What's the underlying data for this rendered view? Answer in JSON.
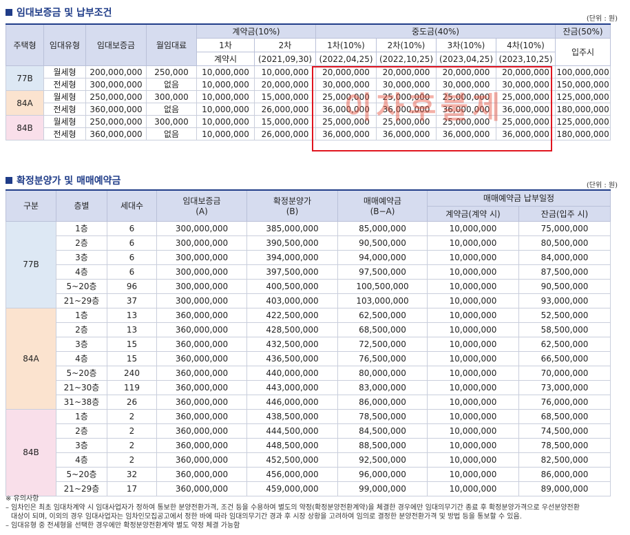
{
  "section1": {
    "title": "임대보증금 및 납부조건",
    "unit": "(단위 : 원)",
    "headers": {
      "unit_type": "주택형",
      "rent_type": "임대유형",
      "deposit": "임대보증금",
      "monthly_rent": "월임대료",
      "contract": "계약금(10%)",
      "middle": "중도금(40%)",
      "balance": "잔금(50%)",
      "c1": "1차",
      "c1_sub": "계약시",
      "c2": "2차",
      "c2_sub": "(2021,09,30)",
      "m1": "1차(10%)",
      "m1_sub": "(2022,04,25)",
      "m2": "2차(10%)",
      "m2_sub": "(2022,10,25)",
      "m3": "3차(10%)",
      "m3_sub": "(2023,04,25)",
      "m4": "4차(10%)",
      "m4_sub": "(2023,10,25)",
      "balance_sub": "입주시"
    },
    "rows": [
      {
        "type": "77B",
        "rent": "월세형",
        "deposit": "200,000,000",
        "monthly": "250,000",
        "c1": "10,000,000",
        "c2": "10,000,000",
        "m1": "20,000,000",
        "m2": "20,000,000",
        "m3": "20,000,000",
        "m4": "20,000,000",
        "bal": "100,000,000"
      },
      {
        "type": "77B",
        "rent": "전세형",
        "deposit": "300,000,000",
        "monthly": "없음",
        "c1": "10,000,000",
        "c2": "20,000,000",
        "m1": "30,000,000",
        "m2": "30,000,000",
        "m3": "30,000,000",
        "m4": "30,000,000",
        "bal": "150,000,000"
      },
      {
        "type": "84A",
        "rent": "월세형",
        "deposit": "250,000,000",
        "monthly": "300,000",
        "c1": "10,000,000",
        "c2": "15,000,000",
        "m1": "25,000,000",
        "m2": "25,000,000",
        "m3": "25,000,000",
        "m4": "25,000,000",
        "bal": "125,000,000"
      },
      {
        "type": "84A",
        "rent": "전세형",
        "deposit": "360,000,000",
        "monthly": "없음",
        "c1": "10,000,000",
        "c2": "26,000,000",
        "m1": "36,000,000",
        "m2": "36,000,000",
        "m3": "36,000,000",
        "m4": "36,000,000",
        "bal": "180,000,000"
      },
      {
        "type": "84B",
        "rent": "월세형",
        "deposit": "250,000,000",
        "monthly": "300,000",
        "c1": "10,000,000",
        "c2": "15,000,000",
        "m1": "25,000,000",
        "m2": "25,000,000",
        "m3": "25,000,000",
        "m4": "25,000,000",
        "bal": "125,000,000"
      },
      {
        "type": "84B",
        "rent": "전세형",
        "deposit": "360,000,000",
        "monthly": "없음",
        "c1": "10,000,000",
        "c2": "26,000,000",
        "m1": "36,000,000",
        "m2": "36,000,000",
        "m3": "36,000,000",
        "m4": "36,000,000",
        "bal": "180,000,000"
      }
    ],
    "watermark": "이자후불제"
  },
  "section2": {
    "title": "확정분양가 및 매매예약금",
    "unit": "(단위 : 원)",
    "headers": {
      "type": "구분",
      "floor": "층별",
      "units": "세대수",
      "deposit": "임대보증금",
      "deposit_sub": "(A)",
      "price": "확정분양가",
      "price_sub": "(B)",
      "reserve": "매매예약금",
      "reserve_sub": "(B−A)",
      "schedule": "매매예약금 납부일정",
      "contract": "계약금(계약 시)",
      "balance": "잔금(입주 시)"
    },
    "groups": [
      {
        "type": "77B",
        "rows": [
          [
            "1층",
            "6",
            "300,000,000",
            "385,000,000",
            "85,000,000",
            "10,000,000",
            "75,000,000"
          ],
          [
            "2층",
            "6",
            "300,000,000",
            "390,500,000",
            "90,500,000",
            "10,000,000",
            "80,500,000"
          ],
          [
            "3층",
            "6",
            "300,000,000",
            "394,000,000",
            "94,000,000",
            "10,000,000",
            "84,000,000"
          ],
          [
            "4층",
            "6",
            "300,000,000",
            "397,500,000",
            "97,500,000",
            "10,000,000",
            "87,500,000"
          ],
          [
            "5~20층",
            "96",
            "300,000,000",
            "400,500,000",
            "100,500,000",
            "10,000,000",
            "90,500,000"
          ],
          [
            "21~29층",
            "37",
            "300,000,000",
            "403,000,000",
            "103,000,000",
            "10,000,000",
            "93,000,000"
          ]
        ]
      },
      {
        "type": "84A",
        "rows": [
          [
            "1층",
            "13",
            "360,000,000",
            "422,500,000",
            "62,500,000",
            "10,000,000",
            "52,500,000"
          ],
          [
            "2층",
            "13",
            "360,000,000",
            "428,500,000",
            "68,500,000",
            "10,000,000",
            "58,500,000"
          ],
          [
            "3층",
            "15",
            "360,000,000",
            "432,500,000",
            "72,500,000",
            "10,000,000",
            "62,500,000"
          ],
          [
            "4층",
            "15",
            "360,000,000",
            "436,500,000",
            "76,500,000",
            "10,000,000",
            "66,500,000"
          ],
          [
            "5~20층",
            "240",
            "360,000,000",
            "440,000,000",
            "80,000,000",
            "10,000,000",
            "70,000,000"
          ],
          [
            "21~30층",
            "119",
            "360,000,000",
            "443,000,000",
            "83,000,000",
            "10,000,000",
            "73,000,000"
          ],
          [
            "31~38층",
            "26",
            "360,000,000",
            "446,000,000",
            "86,000,000",
            "10,000,000",
            "76,000,000"
          ]
        ]
      },
      {
        "type": "84B",
        "rows": [
          [
            "1층",
            "2",
            "360,000,000",
            "438,500,000",
            "78,500,000",
            "10,000,000",
            "68,500,000"
          ],
          [
            "2층",
            "2",
            "360,000,000",
            "444,500,000",
            "84,500,000",
            "10,000,000",
            "74,500,000"
          ],
          [
            "3층",
            "2",
            "360,000,000",
            "448,500,000",
            "88,500,000",
            "10,000,000",
            "78,500,000"
          ],
          [
            "4층",
            "2",
            "360,000,000",
            "452,500,000",
            "92,500,000",
            "10,000,000",
            "82,500,000"
          ],
          [
            "5~20층",
            "32",
            "360,000,000",
            "456,000,000",
            "96,000,000",
            "10,000,000",
            "86,000,000"
          ],
          [
            "21~29층",
            "17",
            "360,000,000",
            "459,000,000",
            "99,000,000",
            "10,000,000",
            "89,000,000"
          ]
        ]
      }
    ]
  },
  "notes": {
    "heading": "※ 유의사항",
    "line1": "– 임차인은 최초 임대차계약 시 임대사업자가 정하여 통보한 분양전환가격, 조건 등을 수용하여 별도의 약정(확정분양전환계약)을 체결한 경우에만 임대의무기간 종료 후 확정분양가격으로 우선분양전환",
    "line1b": "대상이 되며, 이외의 경우 임대사업자는 임차인모집공고에서 정한 바에 따라 임대의무기간 경과 후 시장 상황을 고려하여 임의로 결정한 분양전환가격 및 방법 등을 통보할 수 있음.",
    "line2": "– 임대유형 중 전세형을 선택한 경우에만 확정분양전환계약 별도 약정 체결 가능함"
  }
}
